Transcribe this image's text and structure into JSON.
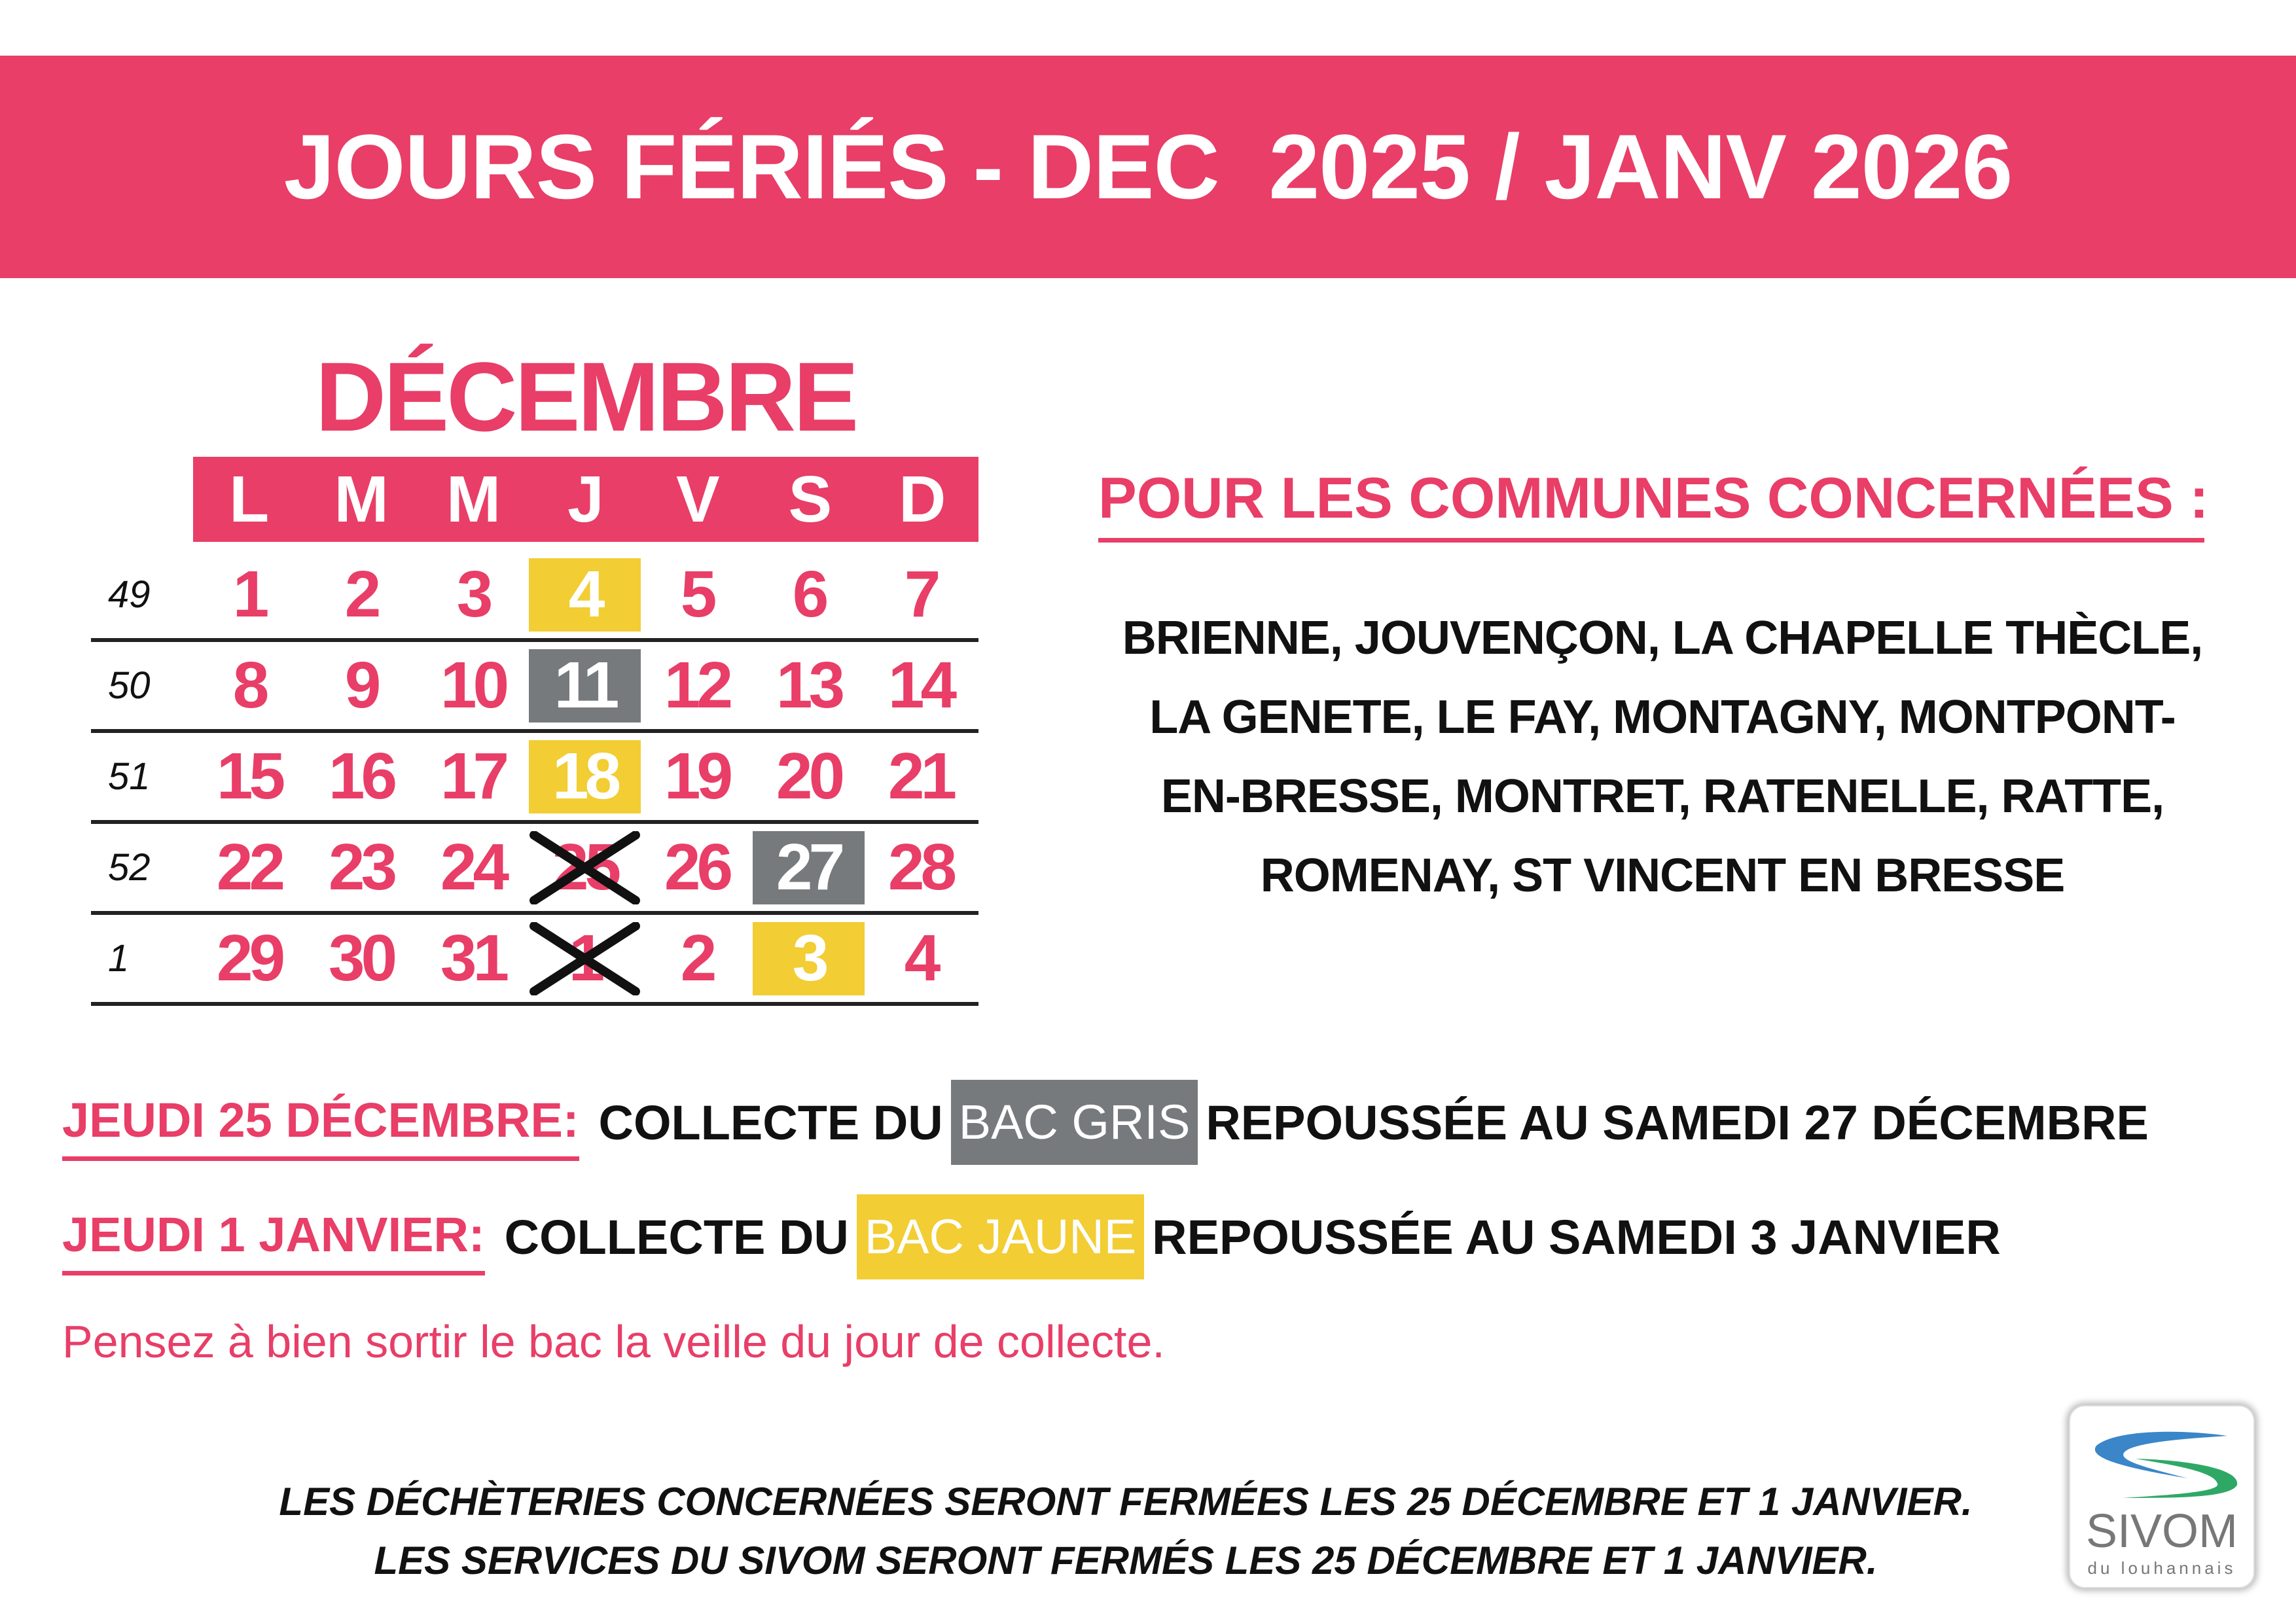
{
  "title": "JOURS FÉRIÉS - DEC  2025 / JANV 2026",
  "calendar": {
    "month": "DÉCEMBRE",
    "days": [
      "L",
      "M",
      "M",
      "J",
      "V",
      "S",
      "D"
    ],
    "colors": {
      "pink": "#e83e67",
      "yellow": "#f2cd33",
      "grey": "#767a7c"
    },
    "weeks": [
      {
        "week": "49",
        "cells": [
          [
            "1",
            ""
          ],
          [
            "2",
            ""
          ],
          [
            "3",
            ""
          ],
          [
            "4",
            "yellow"
          ],
          [
            "5",
            ""
          ],
          [
            "6",
            ""
          ],
          [
            "7",
            ""
          ]
        ]
      },
      {
        "week": "50",
        "cells": [
          [
            "8",
            ""
          ],
          [
            "9",
            ""
          ],
          [
            "10",
            ""
          ],
          [
            "11",
            "grey"
          ],
          [
            "12",
            ""
          ],
          [
            "13",
            ""
          ],
          [
            "14",
            ""
          ]
        ]
      },
      {
        "week": "51",
        "cells": [
          [
            "15",
            ""
          ],
          [
            "16",
            ""
          ],
          [
            "17",
            ""
          ],
          [
            "18",
            "yellow"
          ],
          [
            "19",
            ""
          ],
          [
            "20",
            ""
          ],
          [
            "21",
            ""
          ]
        ]
      },
      {
        "week": "52",
        "cells": [
          [
            "22",
            ""
          ],
          [
            "23",
            ""
          ],
          [
            "24",
            ""
          ],
          [
            "25",
            "crossed"
          ],
          [
            "26",
            ""
          ],
          [
            "27",
            "grey"
          ],
          [
            "28",
            ""
          ]
        ]
      },
      {
        "week": "1",
        "cells": [
          [
            "29",
            ""
          ],
          [
            "30",
            ""
          ],
          [
            "31",
            ""
          ],
          [
            "1",
            "crossed"
          ],
          [
            "2",
            ""
          ],
          [
            "3",
            "yellow"
          ],
          [
            "4",
            ""
          ]
        ]
      }
    ]
  },
  "communes": {
    "heading": "POUR LES COMMUNES CONCERNÉES :",
    "lines": [
      "BRIENNE, JOUVENÇON, LA CHAPELLE THÈCLE,",
      "LA GENETE, LE FAY, MONTAGNY, MONTPONT-",
      "EN-BRESSE, MONTRET, RATENELLE, RATTE,",
      "ROMENAY, ST VINCENT EN BRESSE"
    ]
  },
  "notices": [
    {
      "label": "JEUDI 25 DÉCEMBRE:",
      "before": "COLLECTE DU",
      "bin": "BAC GRIS",
      "after": "REPOUSSÉE AU SAMEDI 27 DÉCEMBRE"
    },
    {
      "label": "JEUDI 1 JANVIER:",
      "before": "COLLECTE DU",
      "bin": "BAC JAUNE",
      "after": "REPOUSSÉE AU SAMEDI 3 JANVIER"
    }
  ],
  "reminder": "Pensez à bien sortir le bac la veille du jour de collecte.",
  "footer": [
    "LES DÉCHÈTERIES CONCERNÉES SERONT FERMÉES LES 25 DÉCEMBRE ET 1 JANVIER.",
    "LES SERVICES DU SIVOM SERONT FERMÉS LES 25 DÉCEMBRE ET 1 JANVIER."
  ],
  "logo": {
    "name": "SIVOM",
    "subtitle": "du louhannais"
  }
}
